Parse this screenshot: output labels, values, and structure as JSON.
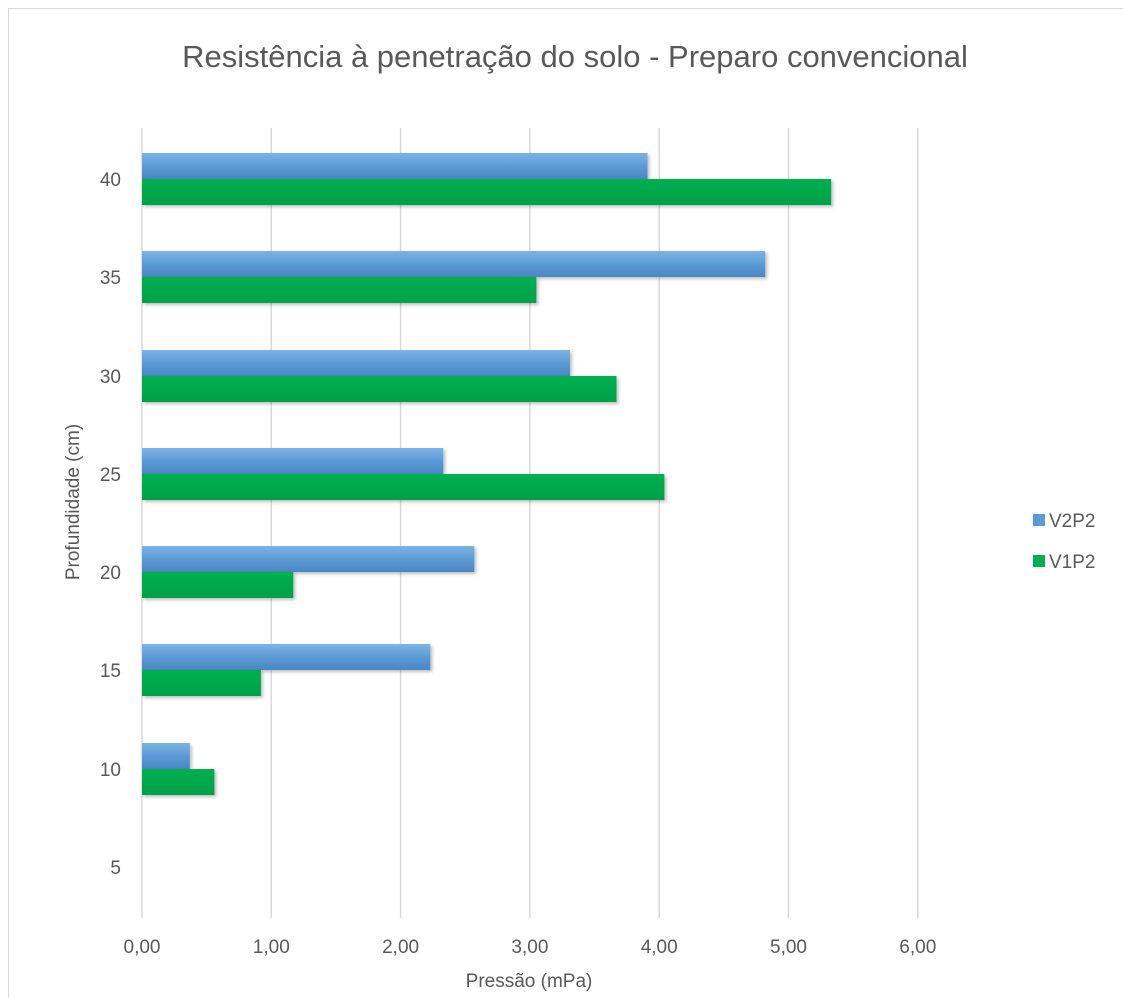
{
  "chart_data": {
    "type": "bar",
    "orientation": "horizontal",
    "title": "Resistência à penetração do solo - Preparo convencional",
    "xlabel": "Pressão (mPa)",
    "ylabel": "Profundidade (cm)",
    "xlim": [
      0,
      6
    ],
    "x_ticks": [
      "0,00",
      "1,00",
      "2,00",
      "3,00",
      "4,00",
      "5,00",
      "6,00"
    ],
    "categories": [
      "5",
      "10",
      "15",
      "20",
      "25",
      "30",
      "35",
      "40"
    ],
    "series": [
      {
        "name": "V2P2",
        "color": "#5b9bd5",
        "values": [
          0.0,
          0.37,
          2.23,
          2.57,
          2.33,
          3.31,
          4.82,
          3.91
        ]
      },
      {
        "name": "V1P2",
        "color": "#00b050",
        "values": [
          0.0,
          0.56,
          0.92,
          1.17,
          4.04,
          3.67,
          3.05,
          5.33
        ]
      }
    ],
    "grid": "vertical",
    "legend": "right"
  }
}
